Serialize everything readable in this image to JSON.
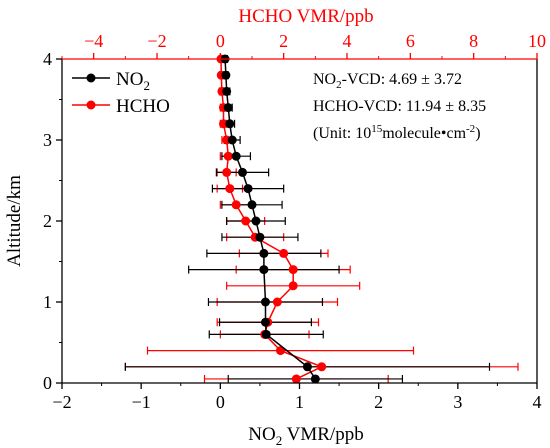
{
  "chart_data": {
    "type": "line",
    "bottom_axis": {
      "xlabel_main": "NO",
      "xlabel_sub": "2",
      "xlabel_tail": " VMR/ppb",
      "xlim": [
        -2,
        4
      ],
      "ticks": [
        -2,
        -1,
        0,
        1,
        2,
        3,
        4
      ],
      "tick_labels": [
        "−2",
        "−1",
        "0",
        "1",
        "2",
        "3",
        "4"
      ]
    },
    "top_axis": {
      "xlabel": "HCHO VMR/ppb",
      "xlim": [
        -5,
        10
      ],
      "ticks": [
        -4,
        -2,
        0,
        2,
        4,
        6,
        8,
        10
      ],
      "tick_labels": [
        "−4",
        "−2",
        "0",
        "2",
        "4",
        "6",
        "8",
        "10"
      ],
      "color": "#ff0000"
    },
    "y_axis": {
      "ylabel": "Altitude/km",
      "ylim": [
        0,
        4
      ],
      "ticks": [
        0,
        1,
        2,
        3,
        4
      ],
      "tick_labels": [
        "0",
        "1",
        "2",
        "3",
        "4"
      ]
    },
    "series": [
      {
        "name_main": "NO",
        "name_sub": "2",
        "color": "#000000",
        "axis": "bottom",
        "points": [
          {
            "y": 0.05,
            "x": 1.2,
            "err": 1.1
          },
          {
            "y": 0.2,
            "x": 1.1,
            "err": 2.3
          },
          {
            "y": 0.6,
            "x": 0.58,
            "err": 0.72
          },
          {
            "y": 0.75,
            "x": 0.57,
            "err": 0.58
          },
          {
            "y": 1.0,
            "x": 0.57,
            "err": 0.72
          },
          {
            "y": 1.4,
            "x": 0.55,
            "err": 0.95
          },
          {
            "y": 1.6,
            "x": 0.55,
            "err": 0.72
          },
          {
            "y": 1.8,
            "x": 0.5,
            "err": 0.48
          },
          {
            "y": 2.0,
            "x": 0.45,
            "err": 0.37
          },
          {
            "y": 2.2,
            "x": 0.4,
            "err": 0.38
          },
          {
            "y": 2.4,
            "x": 0.35,
            "err": 0.45
          },
          {
            "y": 2.6,
            "x": 0.28,
            "err": 0.33
          },
          {
            "y": 2.8,
            "x": 0.2,
            "err": 0.18
          },
          {
            "y": 3.0,
            "x": 0.15,
            "err": 0.1
          },
          {
            "y": 3.2,
            "x": 0.12,
            "err": 0.06
          },
          {
            "y": 3.4,
            "x": 0.1,
            "err": 0.05
          },
          {
            "y": 3.6,
            "x": 0.08,
            "err": 0.04
          },
          {
            "y": 3.8,
            "x": 0.07,
            "err": 0.03
          },
          {
            "y": 4.0,
            "x": 0.06,
            "err": 0.03
          }
        ]
      },
      {
        "name": "HCHO",
        "color": "#ff0000",
        "axis": "top",
        "points": [
          {
            "y": 0.05,
            "x": 2.4,
            "err": 2.9
          },
          {
            "y": 0.2,
            "x": 3.2,
            "err": 6.2
          },
          {
            "y": 0.4,
            "x": 1.9,
            "err": 4.2
          },
          {
            "y": 0.6,
            "x": 1.4,
            "err": 1.4
          },
          {
            "y": 0.75,
            "x": 1.5,
            "err": 1.6
          },
          {
            "y": 1.0,
            "x": 1.8,
            "err": 1.9
          },
          {
            "y": 1.2,
            "x": 2.3,
            "err": 2.1
          },
          {
            "y": 1.4,
            "x": 2.3,
            "err": 1.8
          },
          {
            "y": 1.6,
            "x": 2.0,
            "err": 1.4
          },
          {
            "y": 1.8,
            "x": 1.1,
            "err": 0.9
          },
          {
            "y": 2.0,
            "x": 0.8,
            "err": 0.6
          },
          {
            "y": 2.2,
            "x": 0.5,
            "err": 0.5
          },
          {
            "y": 2.4,
            "x": 0.3,
            "err": 0.4
          },
          {
            "y": 2.6,
            "x": 0.2,
            "err": 0.3
          },
          {
            "y": 2.8,
            "x": 0.25,
            "err": 0.25
          },
          {
            "y": 3.0,
            "x": 0.2,
            "err": 0.15
          },
          {
            "y": 3.2,
            "x": 0.1,
            "err": 0.1
          },
          {
            "y": 3.4,
            "x": 0.1,
            "err": 0.1
          },
          {
            "y": 3.6,
            "x": 0.05,
            "err": 0.08
          },
          {
            "y": 3.8,
            "x": 0.03,
            "err": 0.06
          },
          {
            "y": 4.0,
            "x": 0.02,
            "err": 0.05
          }
        ]
      }
    ],
    "annotations": {
      "line1_prefix": "NO",
      "line1_sub": "2",
      "line1_suffix": "-VCD: 4.69 ± 3.72",
      "line2": "HCHO-VCD: 11.94 ± 8.35",
      "line3_prefix": "(Unit: 10",
      "line3_sup": "15",
      "line3_mid": "molecule•cm",
      "line3_sup2": "-2",
      "line3_suffix": ")"
    },
    "legend_position": "top-left",
    "grid": false
  }
}
